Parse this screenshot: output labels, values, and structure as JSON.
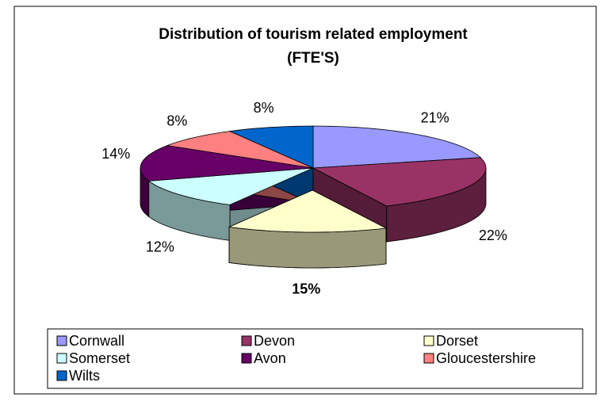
{
  "chart_data": {
    "type": "pie3d",
    "title": "Distribution of tourism related employment",
    "subtitle": "(FTE'S)",
    "categories": [
      "Cornwall",
      "Devon",
      "Dorset",
      "Somerset",
      "Avon",
      "Gloucestershire",
      "Wilts"
    ],
    "values": [
      21,
      22,
      15,
      12,
      14,
      8,
      8
    ],
    "value_labels": [
      "21%",
      "22%",
      "15%",
      "12%",
      "14%",
      "8%",
      "8%"
    ],
    "colors": [
      "#9999ff",
      "#993366",
      "#ffffcc",
      "#ccffff",
      "#660066",
      "#ff8080",
      "#0066cc"
    ],
    "exploded_category": "Dorset",
    "legend": "bottom"
  }
}
